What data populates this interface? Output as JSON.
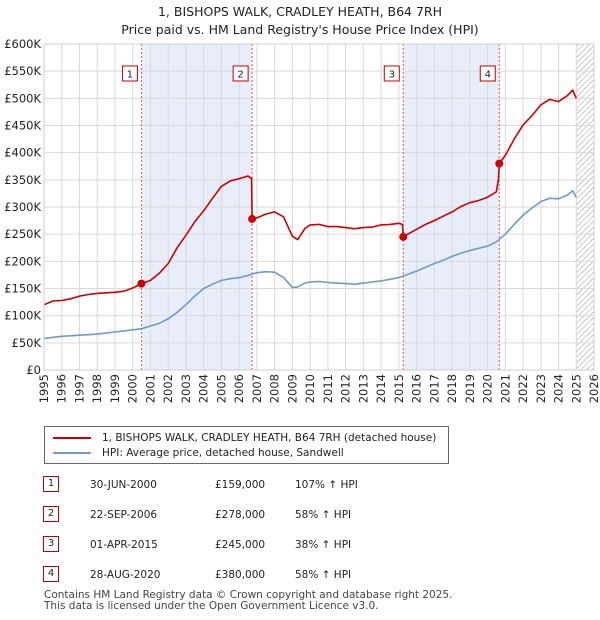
{
  "title_line1": "1, BISHOPS WALK, CRADLEY HEATH, B64 7RH",
  "title_line2": "Price paid vs. HM Land Registry's House Price Index (HPI)",
  "chart_data": {
    "type": "line",
    "title": "1, BISHOPS WALK, CRADLEY HEATH, B64 7RH",
    "subtitle": "Price paid vs. HM Land Registry's House Price Index (HPI)",
    "xlabel": "",
    "ylabel": "",
    "xlim": [
      1995,
      2026
    ],
    "ylim": [
      0,
      600000
    ],
    "x_ticks": [
      "1995",
      "1996",
      "1997",
      "1998",
      "1999",
      "2000",
      "2001",
      "2002",
      "2003",
      "2004",
      "2005",
      "2006",
      "2007",
      "2008",
      "2009",
      "2010",
      "2011",
      "2012",
      "2013",
      "2014",
      "2015",
      "2016",
      "2017",
      "2018",
      "2019",
      "2020",
      "2021",
      "2022",
      "2023",
      "2024",
      "2025",
      "2026"
    ],
    "y_ticks": [
      {
        "value": 0,
        "label": "£0"
      },
      {
        "value": 50000,
        "label": "£50K"
      },
      {
        "value": 100000,
        "label": "£100K"
      },
      {
        "value": 150000,
        "label": "£150K"
      },
      {
        "value": 200000,
        "label": "£200K"
      },
      {
        "value": 250000,
        "label": "£250K"
      },
      {
        "value": 300000,
        "label": "£300K"
      },
      {
        "value": 350000,
        "label": "£350K"
      },
      {
        "value": 400000,
        "label": "£400K"
      },
      {
        "value": 450000,
        "label": "£450K"
      },
      {
        "value": 500000,
        "label": "£500K"
      },
      {
        "value": 550000,
        "label": "£550K"
      },
      {
        "value": 600000,
        "label": "£600K"
      }
    ],
    "grid": true,
    "shaded_periods": [
      {
        "from": 2000.49,
        "to": 2006.73
      },
      {
        "from": 2015.25,
        "to": 2020.66
      }
    ],
    "hatched_from": 2025.0,
    "series": [
      {
        "name": "1, BISHOPS WALK, CRADLEY HEATH, B64 7RH (detached house)",
        "color": "#cc0000",
        "x": [
          1995.0,
          1995.5,
          1996.0,
          1996.5,
          1997.0,
          1997.5,
          1998.0,
          1998.5,
          1999.0,
          1999.5,
          2000.0,
          2000.49,
          2001.0,
          2001.5,
          2002.0,
          2002.5,
          2003.0,
          2003.5,
          2004.0,
          2004.5,
          2005.0,
          2005.5,
          2006.0,
          2006.5,
          2006.7,
          2006.73,
          2007.0,
          2007.5,
          2008.0,
          2008.5,
          2009.0,
          2009.3,
          2009.7,
          2010.0,
          2010.5,
          2011.0,
          2011.5,
          2012.0,
          2012.5,
          2013.0,
          2013.5,
          2014.0,
          2014.5,
          2015.0,
          2015.2,
          2015.25,
          2015.5,
          2016.0,
          2016.5,
          2017.0,
          2017.5,
          2018.0,
          2018.5,
          2019.0,
          2019.5,
          2020.0,
          2020.5,
          2020.62,
          2020.66,
          2021.0,
          2021.5,
          2022.0,
          2022.5,
          2023.0,
          2023.5,
          2024.0,
          2024.5,
          2024.8,
          2025.0
        ],
        "y": [
          120000,
          127000,
          128000,
          131000,
          136000,
          139000,
          141000,
          142000,
          143000,
          145000,
          151000,
          159000,
          165000,
          178000,
          196000,
          225000,
          248000,
          273000,
          293000,
          316000,
          338000,
          348000,
          352000,
          357000,
          352000,
          278000,
          280000,
          287000,
          291000,
          282000,
          246000,
          240000,
          260000,
          267000,
          268000,
          264000,
          264000,
          262000,
          260000,
          262000,
          263000,
          267000,
          268000,
          270000,
          268000,
          245000,
          250000,
          259000,
          268000,
          275000,
          283000,
          291000,
          301000,
          308000,
          312000,
          318000,
          328000,
          352000,
          380000,
          395000,
          425000,
          451000,
          468000,
          488000,
          498000,
          494000,
          505000,
          515000,
          500000
        ]
      },
      {
        "name": "HPI: Average price, detached house, Sandwell",
        "color": "#6e99c8",
        "x": [
          1995.0,
          1995.5,
          1996.0,
          1996.5,
          1997.0,
          1997.5,
          1998.0,
          1998.5,
          1999.0,
          1999.5,
          2000.0,
          2000.5,
          2001.0,
          2001.5,
          2002.0,
          2002.5,
          2003.0,
          2003.5,
          2004.0,
          2004.5,
          2005.0,
          2005.5,
          2006.0,
          2006.5,
          2007.0,
          2007.5,
          2008.0,
          2008.5,
          2009.0,
          2009.3,
          2009.7,
          2010.0,
          2010.5,
          2011.0,
          2011.5,
          2012.0,
          2012.5,
          2013.0,
          2013.5,
          2014.0,
          2014.5,
          2015.0,
          2015.5,
          2016.0,
          2016.5,
          2017.0,
          2017.5,
          2018.0,
          2018.5,
          2019.0,
          2019.5,
          2020.0,
          2020.5,
          2021.0,
          2021.5,
          2022.0,
          2022.5,
          2023.0,
          2023.5,
          2024.0,
          2024.5,
          2024.8,
          2025.0
        ],
        "y": [
          58000,
          60000,
          62000,
          63000,
          64000,
          65000,
          66000,
          68000,
          70000,
          72000,
          74000,
          76000,
          81000,
          86000,
          94000,
          106000,
          120000,
          136000,
          150000,
          158000,
          165000,
          168000,
          170000,
          174000,
          179000,
          181000,
          180000,
          170000,
          152000,
          153000,
          160000,
          162000,
          163000,
          161000,
          160000,
          159000,
          158000,
          160000,
          162000,
          164000,
          167000,
          170000,
          176000,
          182000,
          189000,
          196000,
          202000,
          209000,
          215000,
          220000,
          224000,
          228000,
          236000,
          250000,
          268000,
          285000,
          298000,
          310000,
          316000,
          315000,
          322000,
          330000,
          318000
        ]
      }
    ],
    "sales": [
      {
        "n": "1",
        "x": 2000.49,
        "y": 159000
      },
      {
        "n": "2",
        "x": 2006.73,
        "y": 278000
      },
      {
        "n": "3",
        "x": 2015.25,
        "y": 245000
      },
      {
        "n": "4",
        "x": 2020.66,
        "y": 380000
      }
    ]
  },
  "legend": {
    "items": [
      {
        "label": "1, BISHOPS WALK, CRADLEY HEATH, B64 7RH (detached house)",
        "color": "#cc0000"
      },
      {
        "label": "HPI: Average price, detached house, Sandwell",
        "color": "#6e99c8"
      }
    ]
  },
  "sales_table": [
    {
      "num": "1",
      "date": "30-JUN-2000",
      "price": "£159,000",
      "hpi": "107% ↑ HPI"
    },
    {
      "num": "2",
      "date": "22-SEP-2006",
      "price": "£278,000",
      "hpi": "58% ↑ HPI"
    },
    {
      "num": "3",
      "date": "01-APR-2015",
      "price": "£245,000",
      "hpi": "38% ↑ HPI"
    },
    {
      "num": "4",
      "date": "28-AUG-2020",
      "price": "£380,000",
      "hpi": "58% ↑ HPI"
    }
  ],
  "footer": {
    "line1": "Contains HM Land Registry data © Crown copyright and database right 2025.",
    "line2": "This data is licensed under the Open Government Licence v3.0."
  }
}
